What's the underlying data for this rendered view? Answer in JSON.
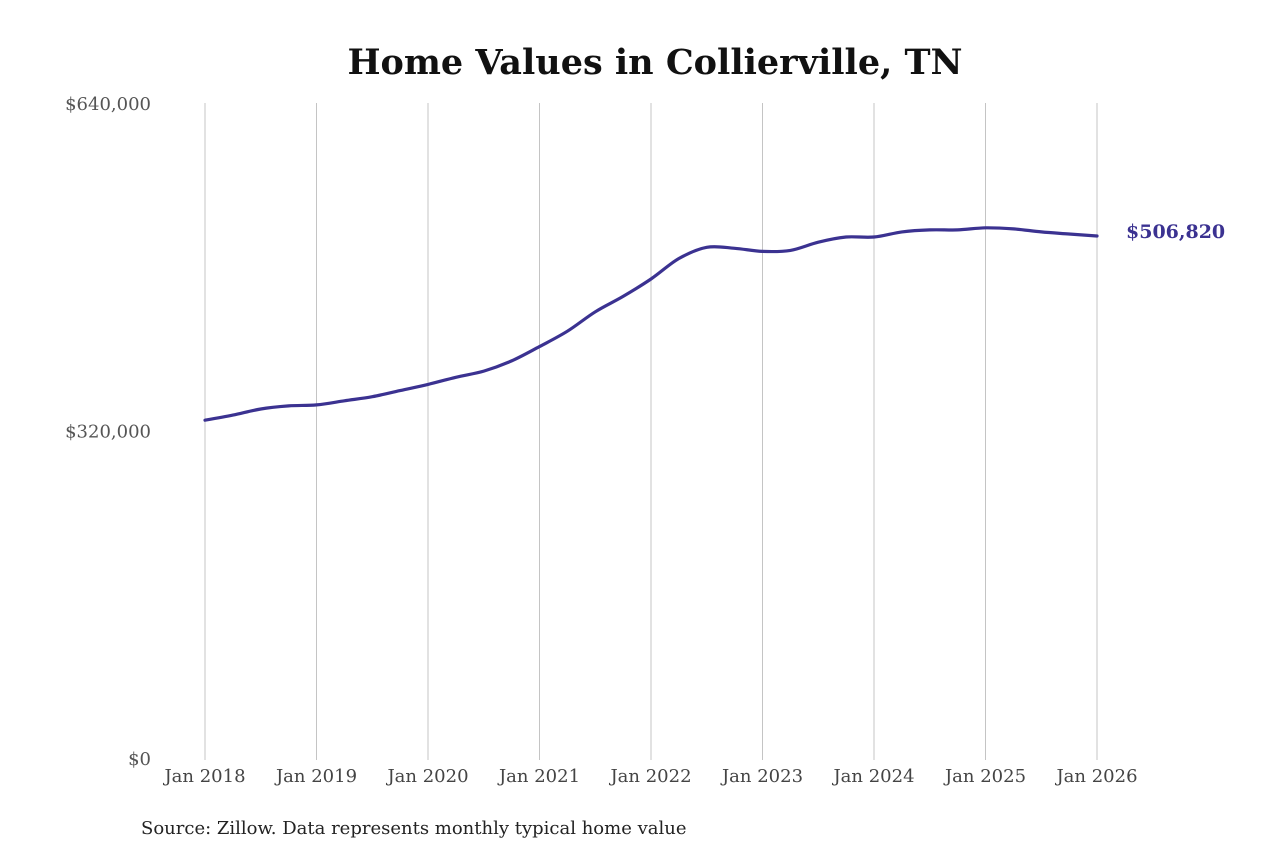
{
  "chart_data": {
    "type": "line",
    "title": "Home Values in Collierville, TN",
    "xlabel": "",
    "ylabel": "",
    "ylim": [
      0,
      640000
    ],
    "y_ticks": [
      {
        "value": 0,
        "label": "$0"
      },
      {
        "value": 320000,
        "label": "$320,000"
      },
      {
        "value": 640000,
        "label": "$640,000"
      }
    ],
    "x_ticks": [
      {
        "value": "2018-01",
        "label": "Jan 2018"
      },
      {
        "value": "2019-01",
        "label": "Jan 2019"
      },
      {
        "value": "2020-01",
        "label": "Jan 2020"
      },
      {
        "value": "2021-01",
        "label": "Jan 2021"
      },
      {
        "value": "2022-01",
        "label": "Jan 2022"
      },
      {
        "value": "2023-01",
        "label": "Jan 2023"
      },
      {
        "value": "2024-01",
        "label": "Jan 2024"
      },
      {
        "value": "2025-01",
        "label": "Jan 2025"
      },
      {
        "value": "2026-01",
        "label": "Jan 2026"
      }
    ],
    "grid": {
      "vertical": true,
      "horizontal": false
    },
    "line_color": "#3b3291",
    "series": [
      {
        "x": [
          "2018-01",
          "2018-04",
          "2018-07",
          "2018-10",
          "2019-01",
          "2019-04",
          "2019-07",
          "2019-10",
          "2020-01",
          "2020-04",
          "2020-07",
          "2020-10",
          "2021-01",
          "2021-04",
          "2021-07",
          "2021-10",
          "2022-01",
          "2022-04",
          "2022-07",
          "2022-10",
          "2023-01",
          "2023-04",
          "2023-07",
          "2023-10",
          "2024-01",
          "2024-04",
          "2024-07",
          "2024-10",
          "2025-01",
          "2025-04",
          "2025-07",
          "2025-10",
          "2026-01"
        ],
        "values": [
          331000,
          336000,
          342000,
          345000,
          346000,
          350000,
          354000,
          360000,
          366000,
          373000,
          379000,
          389000,
          403000,
          418000,
          437000,
          452000,
          469000,
          489000,
          500000,
          499000,
          496000,
          497000,
          505000,
          510000,
          510000,
          515000,
          517000,
          517000,
          519000,
          518000,
          515000,
          513000,
          511000
        ]
      }
    ],
    "end_label": "$506,820",
    "source": "Source: Zillow. Data represents monthly typical home value"
  }
}
